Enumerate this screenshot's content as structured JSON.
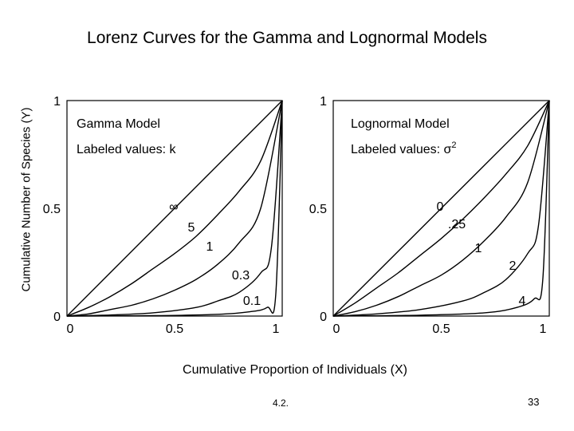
{
  "title": "Lorenz Curves for the Gamma and Lognormal Models",
  "ylabel": "Cumulative Number of Species (Y)",
  "xlabel": "Cumulative Proportion of Individuals (X)",
  "footer": {
    "slide": "4.2.",
    "page": "33"
  },
  "chart_data": [
    {
      "type": "line",
      "title": "Gamma Model",
      "subtitle_text": "Labeled values: k",
      "xlim": [
        0,
        1
      ],
      "ylim": [
        0,
        1
      ],
      "x_ticks": [
        "0",
        "0.5",
        "1"
      ],
      "y_ticks": [
        "0",
        "0.5",
        "1"
      ],
      "series": [
        {
          "name": "∞",
          "x": [
            0,
            0.5,
            1
          ],
          "y": [
            0,
            0.5,
            1
          ]
        },
        {
          "name": "5",
          "x": [
            0,
            0.1,
            0.2,
            0.3,
            0.4,
            0.5,
            0.6,
            0.7,
            0.8,
            0.9,
            1
          ],
          "y": [
            0,
            0.04,
            0.09,
            0.15,
            0.22,
            0.29,
            0.37,
            0.47,
            0.58,
            0.72,
            1
          ]
        },
        {
          "name": "1",
          "x": [
            0,
            0.1,
            0.2,
            0.3,
            0.4,
            0.5,
            0.6,
            0.7,
            0.8,
            0.9,
            1
          ],
          "y": [
            0,
            0.01,
            0.03,
            0.05,
            0.08,
            0.12,
            0.17,
            0.24,
            0.34,
            0.5,
            1
          ]
        },
        {
          "name": "0.3",
          "x": [
            0,
            0.2,
            0.4,
            0.6,
            0.7,
            0.8,
            0.9,
            0.95,
            1
          ],
          "y": [
            0,
            0.005,
            0.015,
            0.04,
            0.07,
            0.11,
            0.2,
            0.32,
            1
          ]
        },
        {
          "name": "0.1",
          "x": [
            0,
            0.4,
            0.7,
            0.85,
            0.93,
            0.97,
            1
          ],
          "y": [
            0,
            0.002,
            0.008,
            0.02,
            0.04,
            0.1,
            1
          ]
        }
      ],
      "annotations": [
        "∞",
        "5",
        "1",
        "0.3",
        "0.1"
      ],
      "grid": false
    },
    {
      "type": "line",
      "title": "Lognormal Model",
      "subtitle_text": "Labeled values: σ",
      "subtitle_sup": "2",
      "xlim": [
        0,
        1
      ],
      "ylim": [
        0,
        1
      ],
      "x_ticks": [
        "0",
        "0.5",
        "1"
      ],
      "y_ticks": [
        "0",
        "0.5",
        "1"
      ],
      "series": [
        {
          "name": "0",
          "x": [
            0,
            0.5,
            1
          ],
          "y": [
            0,
            0.5,
            1
          ]
        },
        {
          "name": ".25",
          "x": [
            0,
            0.1,
            0.2,
            0.3,
            0.4,
            0.5,
            0.6,
            0.7,
            0.8,
            0.9,
            1
          ],
          "y": [
            0,
            0.06,
            0.13,
            0.2,
            0.28,
            0.36,
            0.45,
            0.55,
            0.66,
            0.79,
            1
          ]
        },
        {
          "name": "1",
          "x": [
            0,
            0.1,
            0.2,
            0.3,
            0.4,
            0.5,
            0.6,
            0.7,
            0.8,
            0.9,
            1
          ],
          "y": [
            0,
            0.02,
            0.05,
            0.09,
            0.14,
            0.19,
            0.26,
            0.35,
            0.46,
            0.62,
            1
          ]
        },
        {
          "name": "2",
          "x": [
            0,
            0.2,
            0.4,
            0.6,
            0.7,
            0.8,
            0.9,
            0.95,
            1
          ],
          "y": [
            0,
            0.01,
            0.03,
            0.07,
            0.11,
            0.17,
            0.29,
            0.42,
            1
          ]
        },
        {
          "name": "4",
          "x": [
            0,
            0.4,
            0.7,
            0.85,
            0.93,
            0.97,
            1
          ],
          "y": [
            0,
            0.004,
            0.015,
            0.04,
            0.08,
            0.17,
            1
          ]
        }
      ],
      "annotations": [
        "0",
        ".25",
        "1",
        "2",
        "4"
      ],
      "grid": false
    }
  ]
}
